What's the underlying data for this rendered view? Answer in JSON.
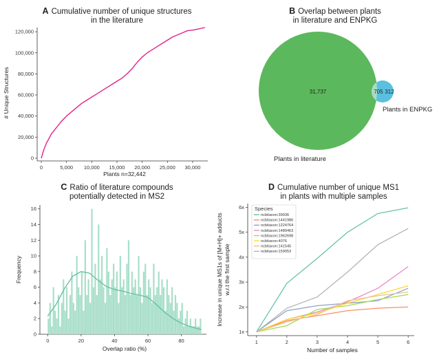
{
  "colors": {
    "line_a": "#e0218a",
    "venn_big": "#5cb85c",
    "venn_small": "#5bc0de",
    "venn_overlap": "#a8dcc4",
    "hist": "#a9dfca",
    "kde": "#66c2a5"
  },
  "chart_data": [
    {
      "id": "A",
      "type": "line",
      "letter": "A",
      "title_line1": "Cumulative number of unique structures",
      "title_line2": "in the literature",
      "xlabel": "Plants n=32,442",
      "ylabel": "# Unique Structures",
      "xlim": [
        0,
        33000
      ],
      "ylim": [
        0,
        124000
      ],
      "xticks": [
        0,
        5000,
        10000,
        15000,
        20000,
        25000,
        30000
      ],
      "xtick_labels": [
        "0",
        "5,000",
        "10,000",
        "15,000",
        "20,000",
        "25,000",
        "30,000"
      ],
      "yticks": [
        0,
        20000,
        40000,
        60000,
        80000,
        100000,
        120000
      ],
      "ytick_labels": [
        "0",
        "20,000",
        "40,000",
        "60,000",
        "80,000",
        "100,000",
        "120,000"
      ],
      "x": [
        0,
        500,
        1000,
        2000,
        3000,
        4000,
        5000,
        6000,
        7000,
        8000,
        9000,
        10000,
        11000,
        12000,
        13000,
        14000,
        15000,
        16000,
        17000,
        18000,
        19000,
        20000,
        21000,
        22000,
        23000,
        24000,
        25000,
        26000,
        27000,
        28000,
        29000,
        30000,
        31000,
        32442
      ],
      "y": [
        0,
        8000,
        14000,
        23000,
        29000,
        35000,
        40000,
        44000,
        48000,
        52000,
        55000,
        58000,
        61000,
        64000,
        67000,
        70000,
        73000,
        76000,
        80000,
        85000,
        91000,
        96000,
        100000,
        103000,
        106000,
        109000,
        112000,
        115000,
        117000,
        119000,
        121000,
        121500,
        122500,
        124000
      ]
    },
    {
      "id": "B",
      "type": "venn",
      "letter": "B",
      "title_line1": "Overlap between plants",
      "title_line2": "in literature and ENPKG",
      "left_only": "31,737",
      "overlap": "705",
      "right_only": "312",
      "left_label": "Plants in literature",
      "right_label": "Plants in ENPKG"
    },
    {
      "id": "C",
      "type": "bar",
      "letter": "C",
      "title_line1": "Ratio of literature compounds",
      "title_line2": "potentially detected in MS2",
      "xlabel": "Overlap ratio (%)",
      "ylabel": "Frequency",
      "xlim": [
        -3,
        95
      ],
      "ylim": [
        0,
        16.5
      ],
      "xticks": [
        0,
        20,
        40,
        60,
        80
      ],
      "yticks": [
        0,
        2,
        4,
        6,
        8,
        10,
        12,
        14,
        16
      ],
      "bin_width": 0.92,
      "values": [
        2,
        4,
        1,
        6,
        3,
        2,
        5,
        1,
        4,
        7,
        3,
        6,
        2,
        5,
        8,
        4,
        3,
        10,
        6,
        5,
        8,
        3,
        12,
        5,
        7,
        4,
        16,
        6,
        9,
        5,
        14,
        7,
        10,
        6,
        4,
        11,
        8,
        5,
        7,
        9,
        6,
        8,
        4,
        10,
        6,
        7,
        5,
        9,
        12,
        5,
        8,
        6,
        7,
        5,
        10,
        6,
        4,
        8,
        9,
        5,
        7,
        6,
        4,
        9,
        5,
        6,
        8,
        5,
        7,
        6,
        3,
        7,
        5,
        4,
        6,
        3,
        5,
        4,
        2,
        3,
        4,
        1,
        2,
        3,
        1,
        2,
        1,
        1,
        2,
        1,
        1,
        2
      ],
      "kde_x": [
        0,
        5,
        10,
        15,
        20,
        25,
        30,
        35,
        40,
        45,
        50,
        55,
        60,
        65,
        70,
        75,
        80,
        85,
        90,
        92
      ],
      "kde_y": [
        2.3,
        3.8,
        5.8,
        7.4,
        8.0,
        7.8,
        6.9,
        6.1,
        5.7,
        5.5,
        5.2,
        5.0,
        4.7,
        3.8,
        2.8,
        2.0,
        1.4,
        1.0,
        0.7,
        0.6
      ]
    },
    {
      "id": "D",
      "type": "line",
      "letter": "D",
      "title_line1": "Cumulative number of unique MS1",
      "title_line2": "in plants with multiple samples",
      "xlabel": "Number of samples",
      "ylabel_line1": "Increase in unique MS1s of [M+H]+ adducts",
      "ylabel_line2": "w.r.t the first sample",
      "xlim": [
        0.8,
        6.2
      ],
      "ylim": [
        0.85,
        6.15
      ],
      "xticks": [
        1,
        2,
        3,
        4,
        5,
        6
      ],
      "yticks": [
        1,
        2,
        3,
        4,
        5,
        6
      ],
      "ytick_labels": [
        "1x",
        "2x",
        "3x",
        "4x",
        "5x",
        "6x"
      ],
      "legend_title": "Species",
      "x": [
        1,
        2,
        3,
        4,
        5,
        6
      ],
      "series": [
        {
          "name": "ncbitaxon:39936",
          "color": "#66c2a5",
          "values": [
            1,
            2.95,
            3.95,
            5.0,
            5.75,
            5.98
          ]
        },
        {
          "name": "ncbitaxon:1441986",
          "color": "#fc8d62",
          "values": [
            1,
            1.45,
            1.65,
            1.85,
            1.95,
            2.0
          ]
        },
        {
          "name": "ncbitaxon:1224764",
          "color": "#8da0cb",
          "values": [
            1,
            1.85,
            2.05,
            2.15,
            2.25,
            2.75
          ]
        },
        {
          "name": "ncbitaxon:1489463",
          "color": "#e78ac3",
          "values": [
            1,
            1.5,
            1.8,
            2.2,
            2.75,
            3.62
          ]
        },
        {
          "name": "ncbitaxon:1962698",
          "color": "#a6d854",
          "values": [
            1,
            1.25,
            1.9,
            2.05,
            2.3,
            2.5
          ]
        },
        {
          "name": "ncbitaxon:4076",
          "color": "#ffd92f",
          "values": [
            1,
            1.5,
            1.75,
            2.15,
            2.5,
            2.85
          ]
        },
        {
          "name": "ncbitaxon:141545",
          "color": "#e5c494",
          "values": [
            1,
            1.4,
            1.7,
            2.25,
            2.45,
            2.6
          ]
        },
        {
          "name": "ncbitaxon:159053",
          "color": "#b3b3b3",
          "values": [
            1,
            1.95,
            2.4,
            3.4,
            4.5,
            5.15
          ]
        }
      ]
    }
  ]
}
